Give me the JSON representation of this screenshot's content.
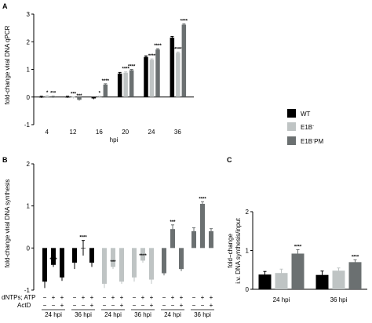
{
  "colors": {
    "black": "#000000",
    "light": "#bfc4c4",
    "mid": "#7a7f80",
    "dark": "#6b7071"
  },
  "legend": {
    "items": [
      {
        "label": "WT",
        "sup": "",
        "color": "#000000"
      },
      {
        "label": "E1B",
        "sup": "-",
        "color": "#bfc4c4"
      },
      {
        "label": "E1B",
        "sup": "-",
        "suffix": "PM",
        "color": "#6b7071"
      }
    ]
  },
  "chart_data": [
    {
      "panel": "A",
      "type": "bar",
      "ylabel": "fold-change viral DNA qPCR",
      "xlabel": "hpi",
      "ylim": [
        -1,
        3
      ],
      "yticks": [
        "-1",
        "0",
        "1",
        "2",
        "3"
      ],
      "categories": [
        "4",
        "12",
        "16",
        "20",
        "24",
        "36"
      ],
      "series": [
        {
          "name": "WT",
          "values": [
            0.0,
            0.0,
            -0.05,
            0.85,
            1.45,
            2.15
          ],
          "errors": [
            0.03,
            0.03,
            0.03,
            0.04,
            0.04,
            0.04
          ],
          "stars": [
            "",
            "",
            "",
            "",
            "",
            ""
          ]
        },
        {
          "name": "E1B-",
          "values": [
            0.02,
            -0.02,
            0.0,
            0.88,
            1.35,
            1.6
          ],
          "errors": [
            0.03,
            0.03,
            0.03,
            0.03,
            0.03,
            0.03
          ],
          "stars": [
            "*",
            "***",
            "*",
            "****",
            "****",
            "****"
          ]
        },
        {
          "name": "E1B-PM",
          "values": [
            0.0,
            -0.1,
            0.45,
            0.97,
            1.72,
            2.62
          ],
          "errors": [
            0.03,
            0.03,
            0.03,
            0.03,
            0.03,
            0.03
          ],
          "stars": [
            "***",
            "***",
            "****",
            "****",
            "****",
            "****"
          ]
        }
      ]
    },
    {
      "panel": "B",
      "type": "bar",
      "ylabel": "fold-change viral DNA synthesis",
      "ylim": [
        -1,
        2
      ],
      "yticks": [
        "-1",
        "0",
        "1",
        "2"
      ],
      "row_labels": [
        "dNTPs; ATP",
        "ActD"
      ],
      "groups": [
        {
          "label": "24 hpi",
          "series": "WT",
          "values": [
            -0.8,
            -0.4,
            -0.7
          ],
          "errors": [
            0.15,
            0.05,
            0.08
          ],
          "stars": [
            "",
            "****",
            ""
          ],
          "dntp": [
            "−",
            "+",
            "+"
          ],
          "actd": [
            "−",
            "−",
            "+"
          ]
        },
        {
          "label": "36 hpi",
          "series": "WT",
          "values": [
            -0.35,
            0.0,
            -0.35
          ],
          "errors": [
            0.15,
            0.18,
            0.1
          ],
          "stars": [
            "",
            "****",
            ""
          ],
          "dntp": [
            "−",
            "+",
            "+"
          ],
          "actd": [
            "−",
            "−",
            "+"
          ]
        },
        {
          "label": "24 hpi",
          "series": "E1B-",
          "values": [
            -0.85,
            -0.45,
            -0.8
          ],
          "errors": [
            0.1,
            0.05,
            0.05
          ],
          "stars": [
            "",
            "***",
            ""
          ],
          "dntp": [
            "−",
            "+",
            "+"
          ],
          "actd": [
            "−",
            "−",
            "+"
          ]
        },
        {
          "label": "36 hpi",
          "series": "E1B-",
          "values": [
            -0.7,
            -0.3,
            -0.75
          ],
          "errors": [
            0.1,
            0.05,
            0.1
          ],
          "stars": [
            "",
            "****",
            ""
          ],
          "dntp": [
            "−",
            "+",
            "+"
          ],
          "actd": [
            "−",
            "−",
            "+"
          ]
        },
        {
          "label": "24 hpi",
          "series": "E1B-PM",
          "values": [
            -0.6,
            0.45,
            -0.5
          ],
          "errors": [
            0.05,
            0.1,
            0.05
          ],
          "stars": [
            "",
            "***",
            ""
          ],
          "dntp": [
            "−",
            "+",
            "+"
          ],
          "actd": [
            "−",
            "−",
            "+"
          ]
        },
        {
          "label": "36 hpi",
          "series": "E1B-PM",
          "values": [
            0.4,
            1.05,
            0.4
          ],
          "errors": [
            0.08,
            0.05,
            0.06
          ],
          "stars": [
            "",
            "****",
            ""
          ],
          "dntp": [
            "−",
            "+",
            "+"
          ],
          "actd": [
            "−",
            "−",
            "+"
          ]
        }
      ]
    },
    {
      "panel": "C",
      "type": "bar",
      "ylabel_lines": [
        "fold−change",
        "i.v. DNA synthesis/input"
      ],
      "ylim": [
        0,
        2
      ],
      "yticks": [
        "0",
        "1",
        "2"
      ],
      "categories": [
        "24 hpi",
        "36 hpi"
      ],
      "series": [
        {
          "name": "WT",
          "values": [
            0.38,
            0.37
          ],
          "errors": [
            0.08,
            0.1
          ],
          "stars": [
            "",
            ""
          ]
        },
        {
          "name": "E1B-",
          "values": [
            0.42,
            0.48
          ],
          "errors": [
            0.1,
            0.07
          ],
          "stars": [
            "",
            ""
          ]
        },
        {
          "name": "E1B-PM",
          "values": [
            0.92,
            0.7
          ],
          "errors": [
            0.1,
            0.06
          ],
          "stars": [
            "****",
            "****"
          ]
        }
      ]
    }
  ]
}
